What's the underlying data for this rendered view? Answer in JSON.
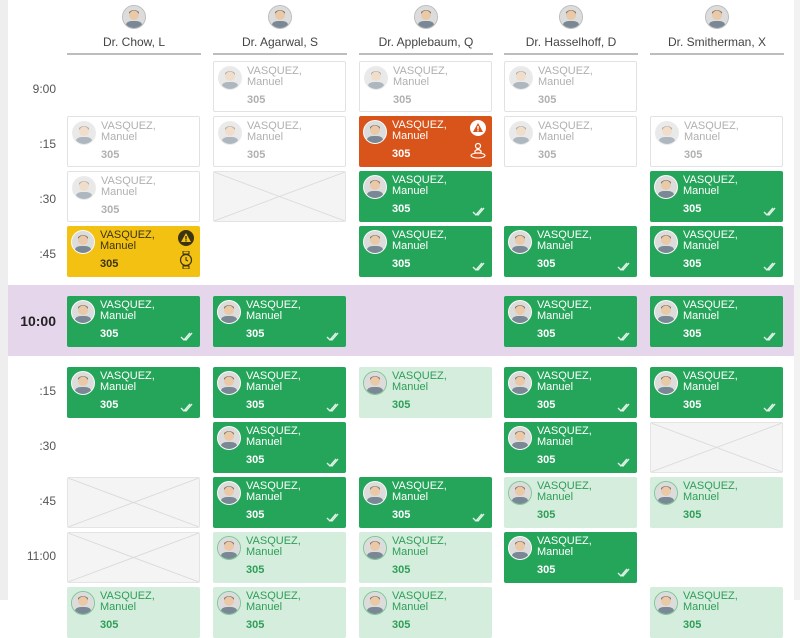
{
  "doctors": [
    {
      "name": "Dr. Chow, L"
    },
    {
      "name": "Dr. Agarwal, S"
    },
    {
      "name": "Dr. Applebaum, Q"
    },
    {
      "name": "Dr. Hasselhoff, D"
    },
    {
      "name": "Dr. Smitherman, X"
    }
  ],
  "times": [
    "9:00",
    ":15",
    ":30",
    ":45",
    "10:00",
    ":15",
    ":30",
    ":45",
    "11:00"
  ],
  "patient": {
    "last": "VASQUEZ,",
    "first": "Manuel",
    "room": "305"
  },
  "legend_colors": {
    "confirmed": "#25a55a",
    "tentative": "#d4eddd",
    "alert": "#d9541a",
    "warning": "#f2c111",
    "ghost": "#ffffff",
    "blocked": "#f4f4f4",
    "hour_band": "#e5d6ec"
  },
  "icons": {
    "confirmed": "double-check-icon",
    "alert": "warning-triangle-icon",
    "alert_sub": "person-waiting-icon",
    "warning_sub": "stopwatch-icon"
  }
}
